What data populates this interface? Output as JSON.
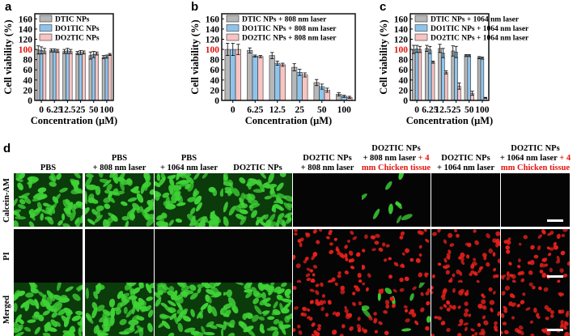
{
  "panels": [
    {
      "letter": "a"
    },
    {
      "letter": "b"
    },
    {
      "letter": "c"
    },
    {
      "letter": "d"
    }
  ],
  "chart_data": [
    {
      "type": "bar",
      "categories": [
        "0",
        "6.25",
        "12.5",
        "25",
        "50",
        "100"
      ],
      "series": [
        {
          "name": "DTIC NPs",
          "values": [
            99,
            98,
            96,
            93,
            88,
            85
          ],
          "errors": [
            8,
            3,
            4,
            3,
            7,
            3
          ]
        },
        {
          "name": "DO1TIC NPs",
          "values": [
            98,
            98,
            97,
            94,
            90,
            86
          ],
          "errors": [
            7,
            3,
            5,
            4,
            6,
            3
          ]
        },
        {
          "name": "DO2TIC NPs",
          "values": [
            97,
            97,
            96,
            94,
            92,
            90
          ],
          "errors": [
            5,
            3,
            4,
            3,
            3,
            2
          ]
        }
      ],
      "title": "",
      "xlabel": "Concentration (μM)",
      "ylabel": "Cell viability (%)",
      "ylim": [
        0,
        170
      ],
      "yticks": [
        "0",
        "20",
        "40",
        "60",
        "80",
        "100",
        "120",
        "140",
        "160"
      ],
      "highlight_tick": "100",
      "highlight_color": "#e1140f",
      "legend_position": "top",
      "colors": [
        "#b7b7b7",
        "#8ec4ec",
        "#f8c4c2"
      ]
    },
    {
      "type": "bar",
      "categories": [
        "0",
        "6.25",
        "12.5",
        "25",
        "50",
        "100"
      ],
      "series": [
        {
          "name": "DTIC NPs + 808 nm laser",
          "values": [
            100,
            98,
            88,
            65,
            35,
            12
          ],
          "errors": [
            12,
            5,
            6,
            7,
            6,
            3
          ]
        },
        {
          "name": "DO1TIC NPs + 808 nm laser",
          "values": [
            100,
            87,
            73,
            55,
            27,
            8
          ],
          "errors": [
            12,
            2,
            4,
            6,
            5,
            2
          ]
        },
        {
          "name": "DO2TIC NPs + 808 nm laser",
          "values": [
            100,
            86,
            70,
            50,
            20,
            6
          ],
          "errors": [
            10,
            2,
            3,
            4,
            4,
            2
          ]
        }
      ],
      "title": "",
      "xlabel": "Concentration (μM)",
      "ylabel": "Cell viability (%)",
      "ylim": [
        0,
        170
      ],
      "yticks": [
        "0",
        "20",
        "40",
        "60",
        "80",
        "100",
        "120",
        "140",
        "160"
      ],
      "highlight_tick": "100",
      "highlight_color": "#e1140f",
      "legend_position": "top",
      "colors": [
        "#b7b7b7",
        "#8ec4ec",
        "#f8c4c2"
      ]
    },
    {
      "type": "bar",
      "categories": [
        "0",
        "6.25",
        "12.5",
        "25",
        "50",
        "100"
      ],
      "series": [
        {
          "name": "DTIC NPs + 1064 nm laser",
          "values": [
            100,
            102,
            102,
            97,
            88,
            84
          ],
          "errors": [
            8,
            6,
            8,
            10,
            2,
            2
          ]
        },
        {
          "name": "DO1TIC NPs + 1064 nm laser",
          "values": [
            101,
            99,
            93,
            95,
            88,
            83
          ],
          "errors": [
            7,
            7,
            9,
            11,
            2,
            2
          ]
        },
        {
          "name": "DO2TIC NPs + 1064 nm laser",
          "values": [
            100,
            75,
            55,
            28,
            14,
            5
          ],
          "errors": [
            6,
            2,
            3,
            6,
            4,
            1
          ]
        }
      ],
      "title": "",
      "xlabel": "Concentration (μM)",
      "ylabel": "Cell viability (%)",
      "ylim": [
        0,
        170
      ],
      "yticks": [
        "0",
        "20",
        "40",
        "60",
        "80",
        "100",
        "120",
        "140",
        "160"
      ],
      "highlight_tick": "100",
      "highlight_color": "#e1140f",
      "legend_position": "top",
      "colors": [
        "#b7b7b7",
        "#8ec4ec",
        "#f8c4c2"
      ]
    }
  ],
  "microscopy": {
    "columns": [
      {
        "line1": "",
        "line2": "",
        "line3": "PBS",
        "red": "",
        "signal": "live"
      },
      {
        "line1": "",
        "line2": "PBS",
        "line3": "+ 808 nm laser",
        "red": "",
        "signal": "live"
      },
      {
        "line1": "",
        "line2": "PBS",
        "line3": "+ 1064 nm laser",
        "red": "",
        "signal": "live"
      },
      {
        "line1": "",
        "line2": "",
        "line3": "DO2TIC NPs",
        "red": "",
        "signal": "live"
      },
      {
        "line1": "",
        "line2": "DO2TIC NPs",
        "line3": "+ 808 nm laser",
        "red": "",
        "signal": "dead"
      },
      {
        "line1": "DO2TIC NPs",
        "line2": "+ 808 nm laser",
        "line2_red": "+ 4",
        "line3": "",
        "red": "mm Chicken tissue",
        "signal": "mixed"
      },
      {
        "line1": "",
        "line2": "DO2TIC NPs",
        "line3": "+ 1064 nm laser",
        "red": "",
        "signal": "dead"
      },
      {
        "line1": "DO2TIC NPs",
        "line2": "+ 1064 nm laser",
        "line2_red": "+ 4",
        "line3": "",
        "red": "mm Chicken tissue",
        "signal": "dead"
      }
    ],
    "rows": [
      {
        "label": "Calcein-AM",
        "channel": "green"
      },
      {
        "label": "PI",
        "channel": "red"
      },
      {
        "label": "Merged",
        "channel": "merged"
      }
    ],
    "colors": {
      "live": "#3fd236",
      "dead": "#e8201c"
    }
  }
}
